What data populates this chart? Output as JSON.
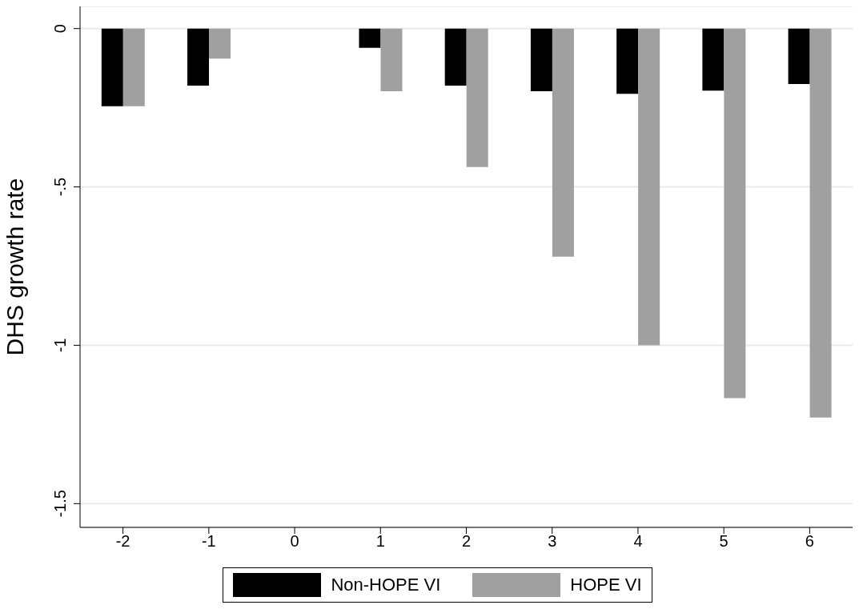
{
  "chart_data": {
    "type": "bar",
    "ylabel": "DHS growth rate",
    "categories": [
      "-2",
      "-1",
      "0",
      "1",
      "2",
      "3",
      "4",
      "5",
      "6"
    ],
    "series": [
      {
        "name": "Non-HOPE VI",
        "color": "#000000",
        "values": [
          -0.245,
          -0.18,
          null,
          -0.061,
          -0.18,
          -0.198,
          -0.206,
          -0.196,
          -0.175
        ]
      },
      {
        "name": "HOPE VI",
        "color": "#a0a0a0",
        "values": [
          -0.245,
          -0.095,
          null,
          -0.198,
          -0.437,
          -0.72,
          -1.0,
          -1.167,
          -1.228
        ]
      }
    ],
    "ylim": [
      -1.575,
      0.07
    ],
    "yticks": [
      {
        "value": -1.5,
        "label": "-1.5"
      },
      {
        "value": -1,
        "label": "-1"
      },
      {
        "value": -0.5,
        "label": "-.5"
      },
      {
        "value": 0,
        "label": "0"
      }
    ],
    "grid": "y",
    "legend": "bottom"
  }
}
